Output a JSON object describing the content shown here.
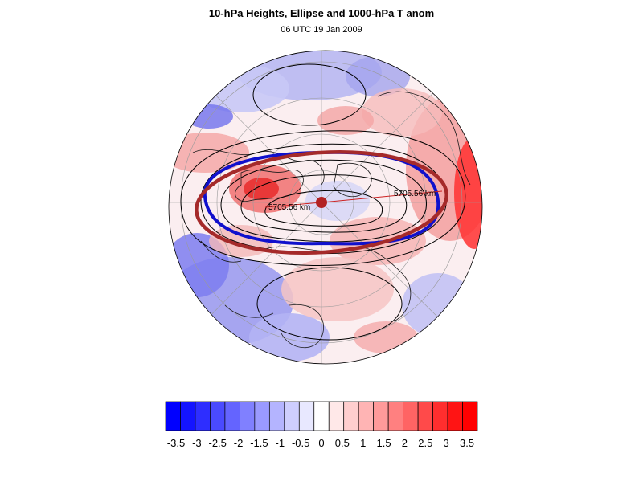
{
  "header": {
    "title": "10-hPa Heights, Ellipse and 1000-hPa T anom",
    "subtitle": "06 UTC 19 Jan 2009"
  },
  "map": {
    "projection": "polar stereographic (north pole)",
    "ellipse_labels": [
      "5705.56 km",
      "5705.56 km"
    ],
    "colors": {
      "ellipse": "#a52a2a",
      "height_contour_highlight": "#1010cc",
      "contours": "#000000",
      "center_marker": "#b22222"
    }
  },
  "colorbar": {
    "levels": [
      "-3.5",
      "-3",
      "-2.5",
      "-2",
      "-1.5",
      "-1",
      "-0.5",
      "0",
      "0.5",
      "1",
      "1.5",
      "2",
      "2.5",
      "3",
      "3.5"
    ],
    "colors": [
      "#0000ff",
      "#1414ff",
      "#2e2eff",
      "#4a4aff",
      "#6464ff",
      "#8080ff",
      "#9a9aff",
      "#b4b4ff",
      "#cecefe",
      "#e8e8ff",
      "#ffffff",
      "#ffe8e8",
      "#ffcece",
      "#ffb4b4",
      "#ff9a9a",
      "#ff8080",
      "#ff6464",
      "#ff4a4a",
      "#ff2e2e",
      "#ff1414",
      "#ff0000"
    ]
  }
}
